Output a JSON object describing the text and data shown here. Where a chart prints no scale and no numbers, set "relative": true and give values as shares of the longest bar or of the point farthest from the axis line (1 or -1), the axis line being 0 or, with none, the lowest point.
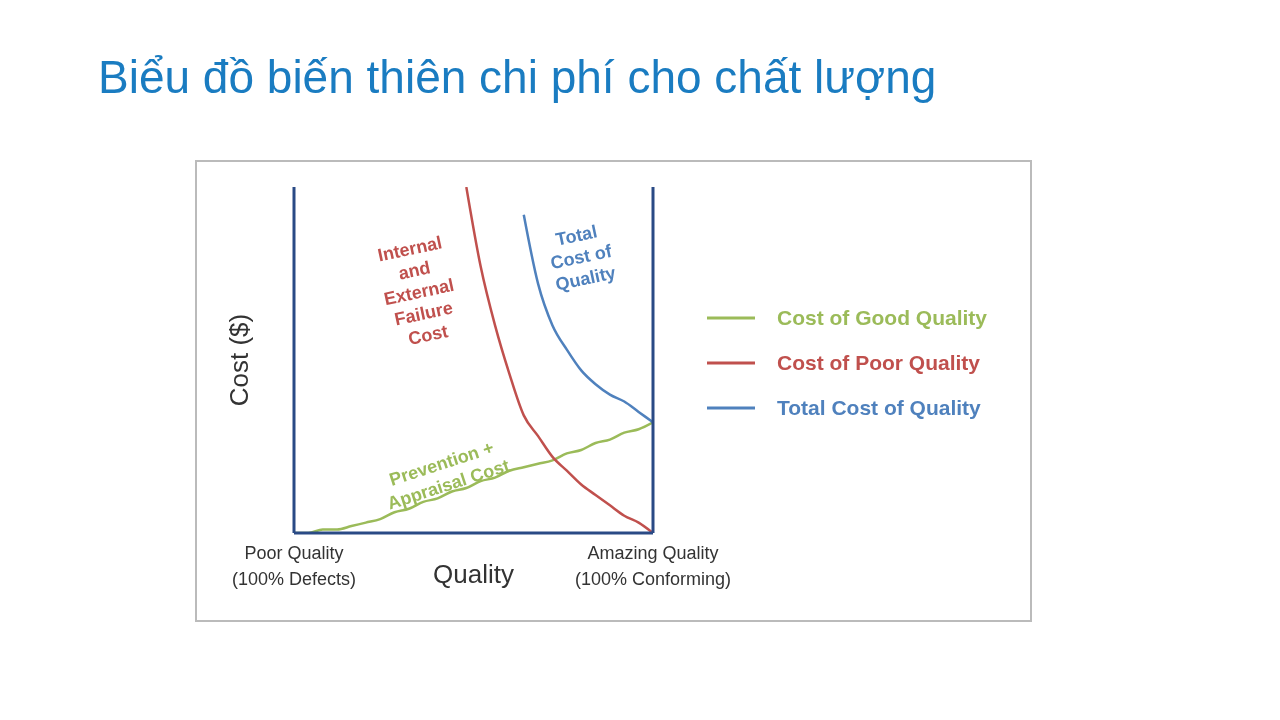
{
  "chart_data": {
    "type": "line",
    "title": "Biểu đồ biến thiên chi phí cho chất lượng",
    "xlabel": "Quality",
    "ylabel": "Cost ($)",
    "relative": true,
    "legend": "right",
    "marker": "none",
    "line_style": "solid",
    "categories": [
      "Poor Quality\n(100% Defects)",
      null,
      null,
      null,
      null,
      null,
      null,
      null,
      null,
      null,
      null,
      null,
      null,
      null,
      null,
      null,
      null,
      null,
      null,
      null,
      null,
      null,
      null,
      null,
      null,
      "Amazing Quality\n(100% Conforming)"
    ],
    "series": [
      {
        "name": "Cost of Good Quality",
        "color": "#9bbb59",
        "values": [
          0,
          0,
          0.01,
          0.01,
          0.02,
          0.03,
          0.04,
          0.06,
          0.07,
          0.09,
          0.1,
          0.12,
          0.13,
          0.15,
          0.16,
          0.18,
          0.19,
          0.2,
          0.21,
          0.23,
          0.24,
          0.26,
          0.27,
          0.29,
          0.3,
          0.32
        ]
      },
      {
        "name": "Cost of Poor Quality",
        "color": "#c0504d",
        "values": [
          null,
          null,
          null,
          null,
          null,
          null,
          null,
          null,
          null,
          null,
          null,
          null,
          1,
          0.77,
          0.6,
          0.46,
          0.34,
          0.28,
          0.22,
          0.18,
          0.14,
          0.11,
          0.08,
          0.05,
          0.03,
          0
        ]
      },
      {
        "name": "Total Cost of Quality",
        "color": "#4f81bd",
        "values": [
          null,
          null,
          null,
          null,
          null,
          null,
          null,
          null,
          null,
          null,
          null,
          null,
          null,
          null,
          null,
          null,
          0.92,
          0.72,
          0.6,
          0.53,
          0.47,
          0.43,
          0.4,
          0.38,
          0.35,
          0.32
        ]
      }
    ],
    "annotations": [
      "Internal\nand\nExternal\nFailure\nCost",
      "Total\nCost of\nQuality",
      "Prevention +\nAppraisal Cost"
    ]
  }
}
